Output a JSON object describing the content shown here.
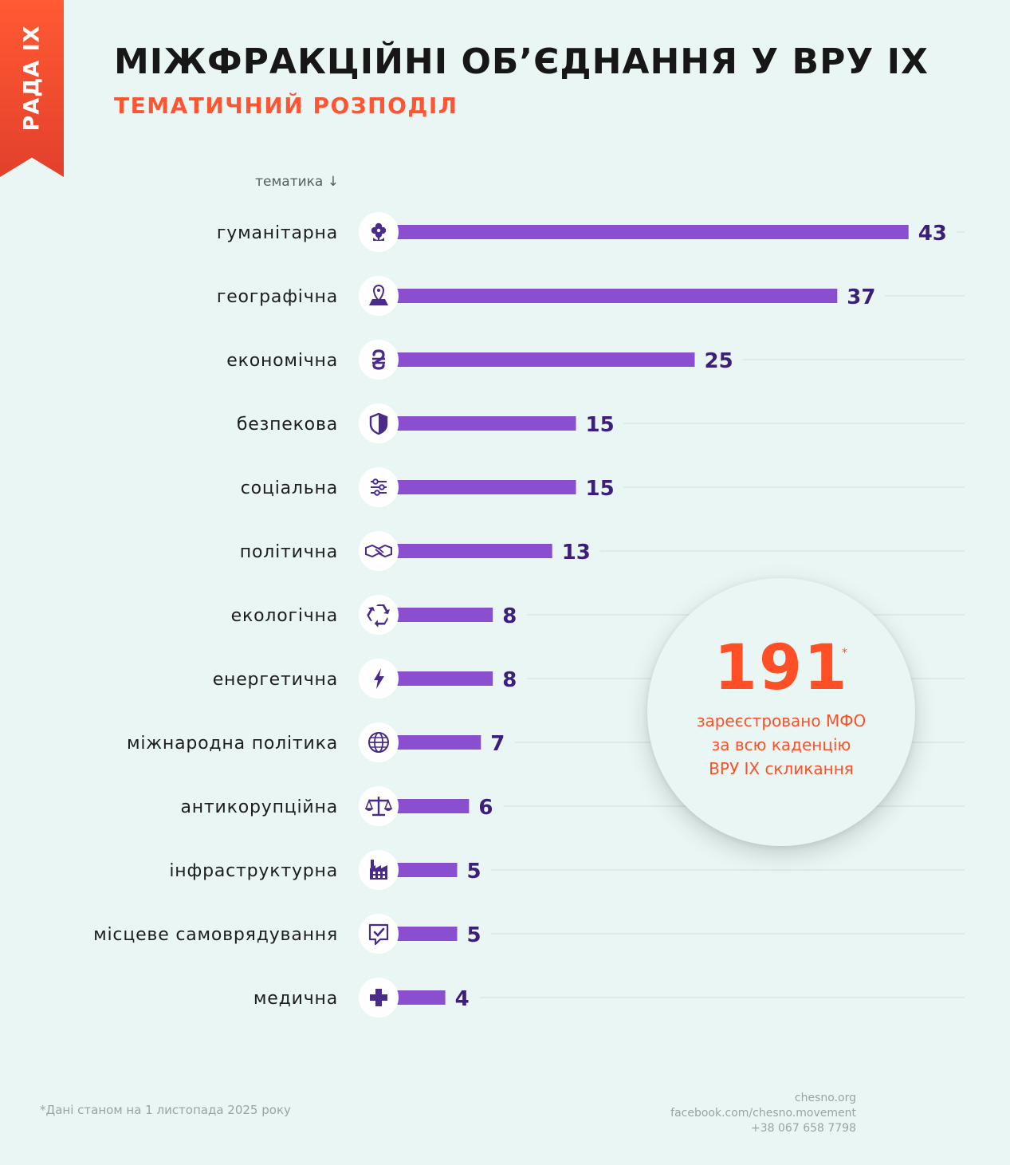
{
  "ribbon": {
    "text": "РАДА IX"
  },
  "header": {
    "title": "МІЖФРАКЦІЙНІ ОБ’ЄДНАННЯ У ВРУ ІХ",
    "subtitle": "ТЕМАТИЧНИЙ РОЗПОДІЛ"
  },
  "axis_caption": "тематика ↓",
  "chart_data": {
    "type": "bar",
    "orientation": "horizontal",
    "categories": [
      "гуманітарна",
      "географічна",
      "економічна",
      "безпекова",
      "соціальна",
      "політична",
      "екологічна",
      "енергетична",
      "міжнародна політика",
      "антикорупційна",
      "інфраструктурна",
      "місцеве самоврядування",
      "медична"
    ],
    "values": [
      43,
      37,
      25,
      15,
      15,
      13,
      8,
      8,
      7,
      6,
      5,
      5,
      4
    ],
    "icons": [
      "flower-icon",
      "map-pin-icon",
      "hryvnia-icon",
      "shield-icon",
      "sliders-icon",
      "handshake-icon",
      "recycle-icon",
      "lightning-icon",
      "globe-icon",
      "scales-icon",
      "factory-icon",
      "check-bubble-icon",
      "medical-cross-icon"
    ],
    "grid": true,
    "colors": {
      "bar": "#8a4fcf",
      "value": "#3c1f78",
      "icon": "#4a2a8a",
      "grid": "#d3dcdb"
    }
  },
  "stat": {
    "number": "191",
    "star": "*",
    "line1": "зареєстровано МФО",
    "line2": "за всю каденцію",
    "line3": "ВРУ ІХ скликання"
  },
  "footnote": "*Дані станом на 1 листопада 2025 року",
  "contacts": {
    "site": "chesno.org",
    "facebook": "facebook.com/chesno.movement",
    "phone": "+38 067 658 7798"
  },
  "colors": {
    "accent": "#ff5533",
    "background": "#eaf6f4",
    "title": "#171717"
  }
}
